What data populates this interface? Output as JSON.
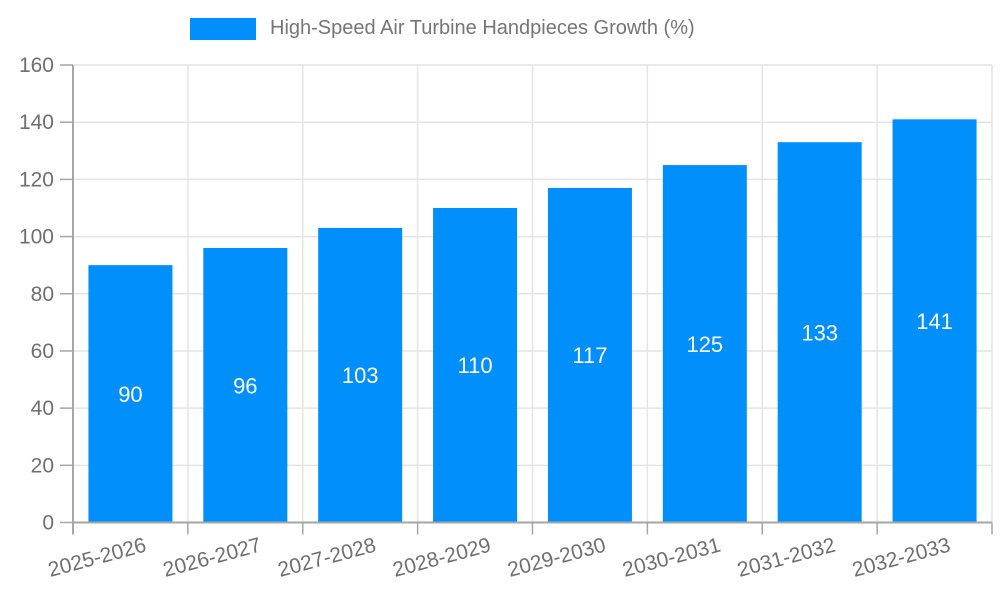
{
  "chart_data": {
    "type": "bar",
    "title": "High-Speed Air Turbine Handpieces Growth (%)",
    "categories": [
      "2025-2026",
      "2026-2027",
      "2027-2028",
      "2028-2029",
      "2029-2030",
      "2030-2031",
      "2031-2032",
      "2032-2033"
    ],
    "values": [
      90,
      96,
      103,
      110,
      117,
      125,
      133,
      141
    ],
    "xlabel": "",
    "ylabel": "",
    "ylim": [
      0,
      160
    ],
    "ytick_step": 20,
    "yticks": [
      0,
      20,
      40,
      60,
      80,
      100,
      120,
      140,
      160
    ],
    "grid": true,
    "legend_position": "top",
    "bar_color": "#008FFB",
    "value_label_color": "#FFFFFF",
    "axis_label_color": "#6F6F6F",
    "grid_color": "#E4E4E4",
    "axis_line_color": "#A6A6A6"
  }
}
